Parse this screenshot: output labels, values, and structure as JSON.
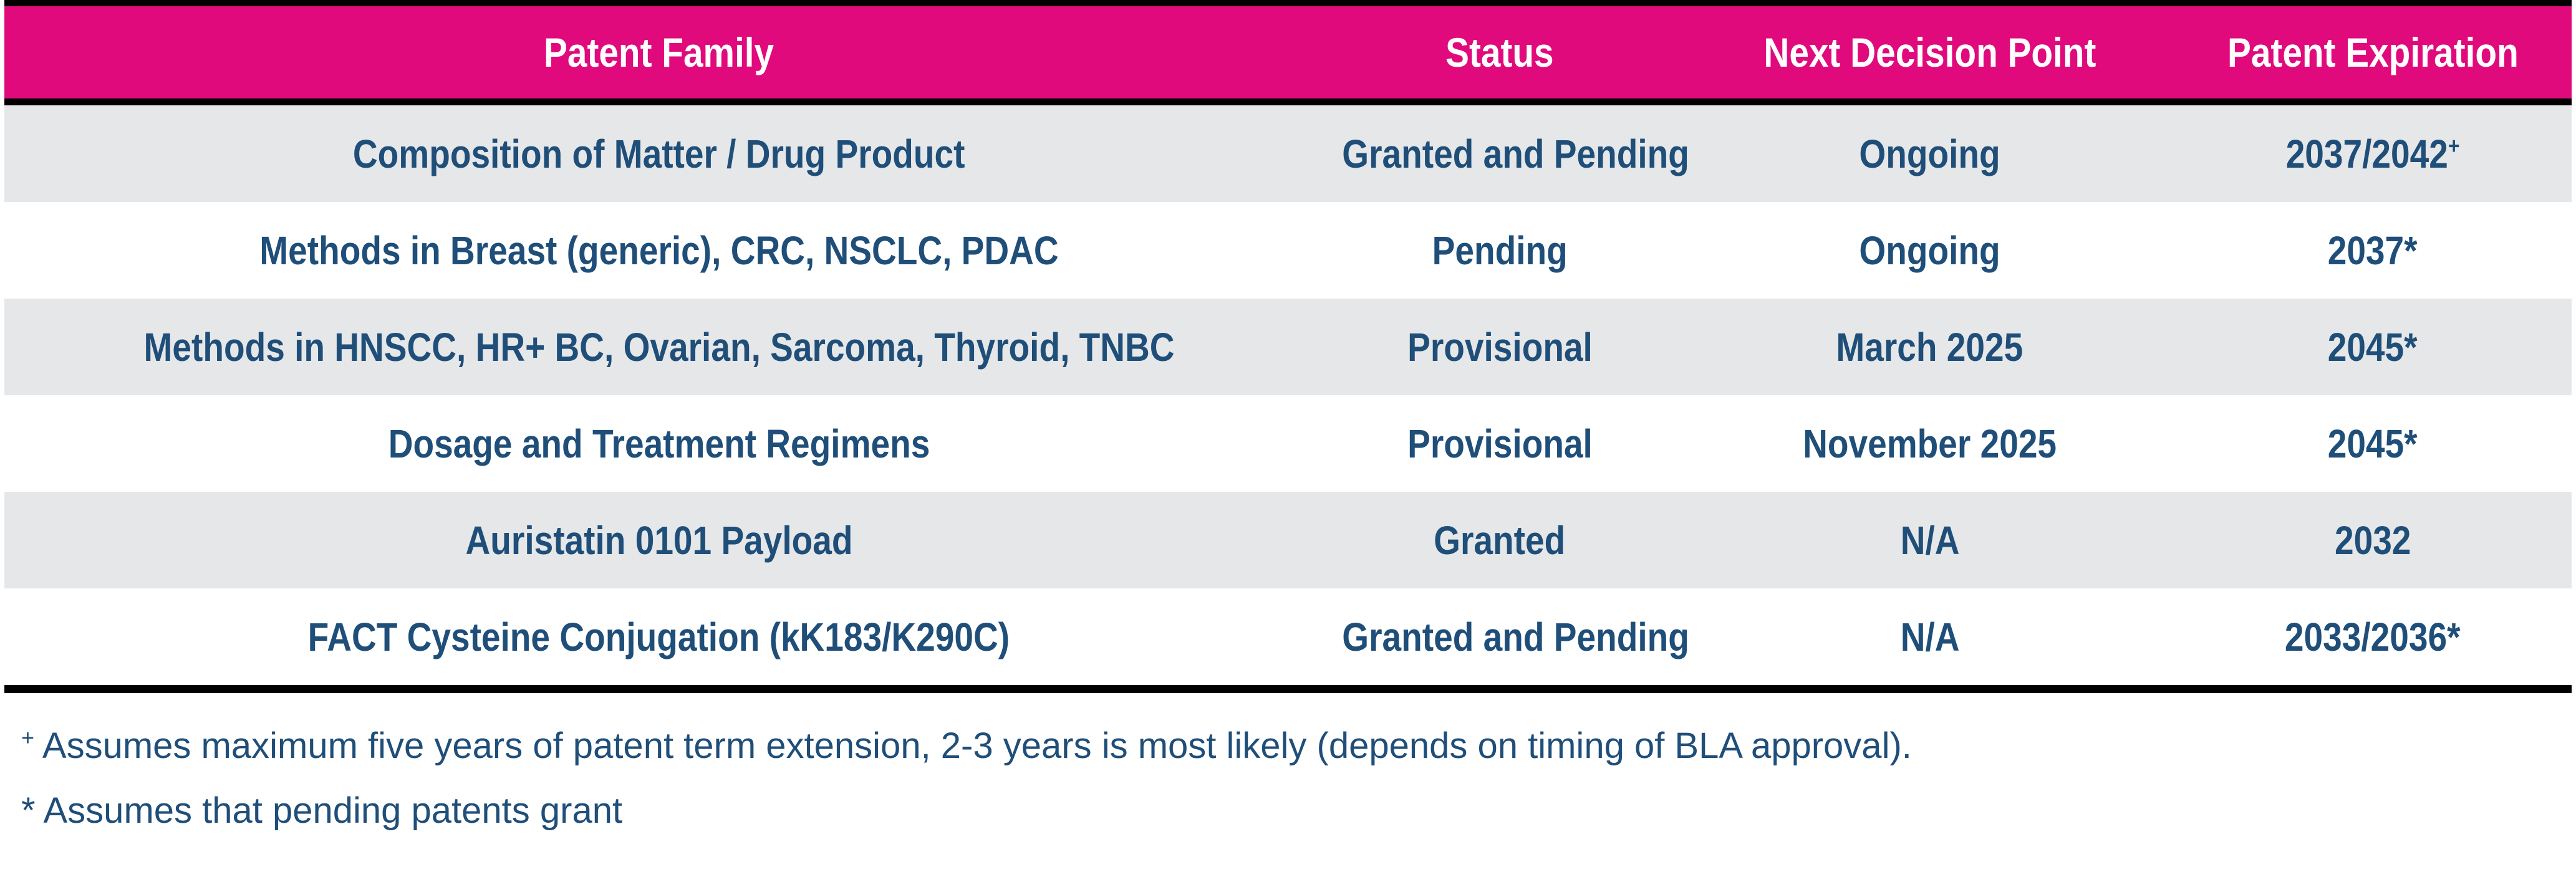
{
  "colors": {
    "header_bg": "#E10A7C",
    "header_text": "#FFFFFF",
    "body_text": "#1F4E79",
    "row_alt_bg": "#E6E7E8",
    "rule": "#000000"
  },
  "table": {
    "columns": [
      "Patent Family",
      "Status",
      "Next Decision Point",
      "Patent Expiration"
    ],
    "rows": [
      {
        "family": "Composition of Matter / Drug Product",
        "status": "Granted and Pending",
        "next_decision": "Ongoing",
        "expiration": "2037/2042",
        "expiration_sup": "+"
      },
      {
        "family": "Methods in Breast (generic), CRC, NSCLC, PDAC",
        "status": "Pending",
        "next_decision": "Ongoing",
        "expiration": "2037*",
        "expiration_sup": ""
      },
      {
        "family": "Methods in HNSCC, HR+ BC, Ovarian, Sarcoma, Thyroid, TNBC",
        "status": "Provisional",
        "next_decision": "March 2025",
        "expiration": "2045*",
        "expiration_sup": ""
      },
      {
        "family": "Dosage and Treatment Regimens",
        "status": "Provisional",
        "next_decision": "November 2025",
        "expiration": "2045*",
        "expiration_sup": ""
      },
      {
        "family": "Auristatin 0101 Payload",
        "status": "Granted",
        "next_decision": "N/A",
        "expiration": "2032",
        "expiration_sup": ""
      },
      {
        "family": "FACT Cysteine Conjugation (kK183/K290C)",
        "status": "Granted and Pending",
        "next_decision": "N/A",
        "expiration": "2033/2036*",
        "expiration_sup": ""
      }
    ]
  },
  "footnotes": [
    {
      "marker": "+",
      "text": "Assumes maximum five years of patent term extension, 2-3 years is most likely (depends on timing of BLA approval)."
    },
    {
      "marker": "*",
      "text": "Assumes that pending patents grant"
    }
  ]
}
